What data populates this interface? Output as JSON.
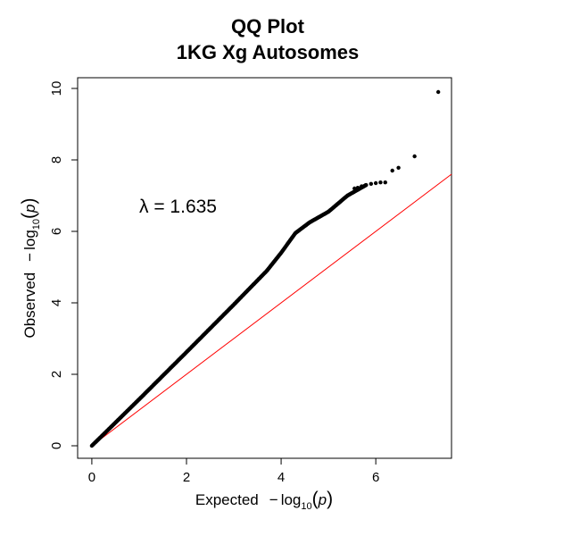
{
  "chart_data": {
    "type": "scatter",
    "title": "QQ Plot",
    "subtitle": "1KG Xg Autosomes",
    "xlabel": {
      "prefix": "Expected",
      "minus": "−",
      "log": "log",
      "base": "10",
      "open": "(",
      "var": "p",
      "close": ")"
    },
    "ylabel": {
      "prefix": "Observed",
      "minus": "−",
      "log": "log",
      "base": "10",
      "open": "(",
      "var": "p",
      "close": ")"
    },
    "xlim": [
      -0.3,
      7.6
    ],
    "ylim": [
      -0.35,
      10.3
    ],
    "x_ticks": [
      "0",
      "2",
      "4",
      "6"
    ],
    "y_ticks": [
      "0",
      "2",
      "4",
      "6",
      "8",
      "10"
    ],
    "grid": false,
    "annotation": "λ = 1.635",
    "reference_line": {
      "slope": 1,
      "intercept": 0,
      "color": "#ff0000"
    },
    "point_color": "#000000",
    "dense_curve": [
      [
        0.0,
        0.0
      ],
      [
        0.5,
        0.65
      ],
      [
        1.0,
        1.3
      ],
      [
        2.0,
        2.62
      ],
      [
        3.0,
        3.95
      ],
      [
        3.7,
        4.9
      ],
      [
        4.0,
        5.4
      ],
      [
        4.3,
        5.95
      ],
      [
        4.6,
        6.25
      ],
      [
        5.0,
        6.55
      ],
      [
        5.4,
        7.0
      ],
      [
        5.8,
        7.3
      ]
    ],
    "tail_points": [
      [
        5.55,
        7.2
      ],
      [
        5.62,
        7.22
      ],
      [
        5.7,
        7.26
      ],
      [
        5.78,
        7.29
      ],
      [
        5.9,
        7.33
      ],
      [
        6.0,
        7.35
      ],
      [
        6.1,
        7.37
      ],
      [
        6.2,
        7.37
      ],
      [
        6.35,
        7.7
      ],
      [
        6.48,
        7.78
      ],
      [
        6.82,
        8.1
      ],
      [
        7.32,
        9.9
      ]
    ]
  }
}
